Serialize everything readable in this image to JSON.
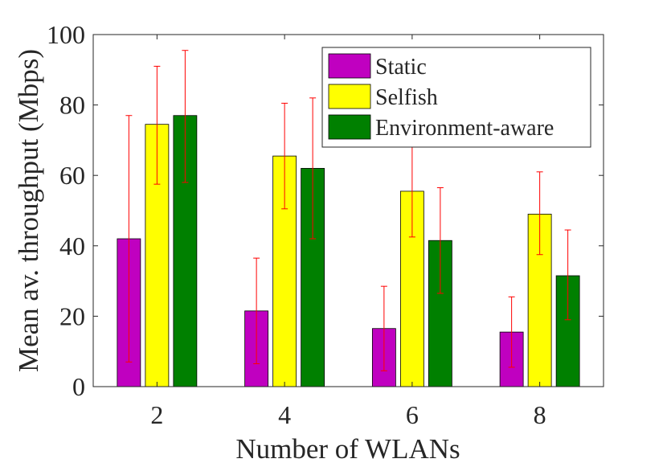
{
  "chart_data": {
    "type": "bar",
    "title": "",
    "xlabel": "Number of WLANs",
    "ylabel": "Mean av. throughput (Mbps)",
    "ylim": [
      0,
      100
    ],
    "yticks": [
      0,
      20,
      40,
      60,
      80,
      100
    ],
    "categories": [
      "2",
      "4",
      "6",
      "8"
    ],
    "grid": false,
    "legend_position": "top-right",
    "series": [
      {
        "name": "Static",
        "color": "#c000c0",
        "values": [
          42,
          21.5,
          16.5,
          15.5
        ],
        "error_low": [
          7,
          6.5,
          4.5,
          5.5
        ],
        "error_high": [
          77,
          36.5,
          28.5,
          25.5
        ]
      },
      {
        "name": "Selfish",
        "color": "#ffff00",
        "values": [
          74.5,
          65.5,
          55.5,
          49
        ],
        "error_low": [
          57.5,
          50.5,
          42.5,
          37.5
        ],
        "error_high": [
          91,
          80.5,
          70.5,
          61
        ]
      },
      {
        "name": "Environment-aware",
        "color": "#008000",
        "values": [
          77,
          62,
          41.5,
          31.5
        ],
        "error_low": [
          58,
          42,
          26.5,
          19
        ],
        "error_high": [
          95.5,
          82,
          56.5,
          44.5
        ]
      }
    ]
  }
}
